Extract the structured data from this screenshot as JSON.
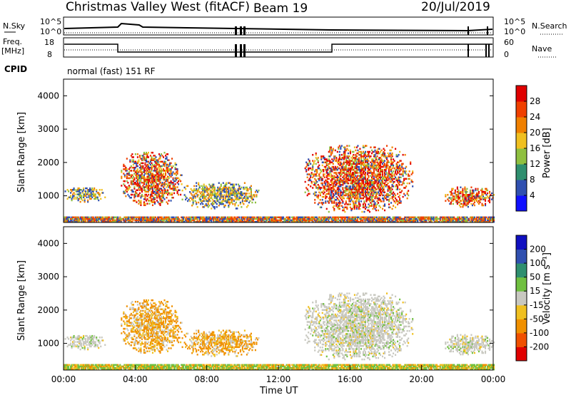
{
  "header": {
    "title": "Christmas Valley West (fitACF)",
    "beam": "Beam 19",
    "date": "20/Jul/2019"
  },
  "panels": {
    "nsky": {
      "label": "N.Sky",
      "ticks": [
        "10^5",
        "10^0"
      ],
      "right_label": "N.Search",
      "right_ticks": [
        "10^5",
        "10^0"
      ]
    },
    "freq": {
      "label_lines": [
        "Freq.",
        "[MHz]"
      ],
      "ticks": [
        "18",
        "8"
      ],
      "right_label": "Nave",
      "right_ticks": [
        "60",
        "0"
      ]
    },
    "cpid": {
      "label": "CPID",
      "text": "normal (fast) 151 RF"
    }
  },
  "chart_data": [
    {
      "type": "heatmap",
      "name": "power",
      "ylabel": "Slant Range [km]",
      "yticks": [
        1000,
        2000,
        3000,
        4000
      ],
      "ylim": [
        200,
        4500
      ],
      "xlim": [
        0,
        24
      ],
      "colorbar": {
        "label": "Power [dB]",
        "ticks": [
          "4",
          "8",
          "12",
          "16",
          "20",
          "24",
          "28"
        ],
        "colors": [
          "#1010ff",
          "#3050b0",
          "#2f8f6f",
          "#8fc040",
          "#f0c020",
          "#f08000",
          "#f04000",
          "#e00000"
        ]
      },
      "echo_regions": [
        {
          "t_start": 0.0,
          "t_end": 2.3,
          "range_min": 800,
          "range_max": 1250,
          "level": "moderate"
        },
        {
          "t_start": 3.2,
          "t_end": 6.6,
          "range_min": 700,
          "range_max": 2300,
          "level": "strong"
        },
        {
          "t_start": 6.6,
          "t_end": 10.9,
          "range_min": 600,
          "range_max": 1400,
          "level": "moderate"
        },
        {
          "t_start": 13.4,
          "t_end": 19.5,
          "range_min": 500,
          "range_max": 2500,
          "level": "strong"
        },
        {
          "t_start": 21.3,
          "t_end": 24.0,
          "range_min": 650,
          "range_max": 1250,
          "level": "strong"
        },
        {
          "t_start": 0.0,
          "t_end": 24.0,
          "range_min": 200,
          "range_max": 350,
          "level": "ground"
        }
      ]
    },
    {
      "type": "heatmap",
      "name": "velocity",
      "ylabel": "Slant Range [km]",
      "yticks": [
        1000,
        2000,
        3000,
        4000
      ],
      "ylim": [
        200,
        4500
      ],
      "xlim": [
        0,
        24
      ],
      "xlabel": "Time UT",
      "xticks": [
        "00:00",
        "04:00",
        "08:00",
        "12:00",
        "16:00",
        "20:00",
        "00:00"
      ],
      "colorbar": {
        "label": "Velocity [m s⁻¹]",
        "ticks": [
          "-200",
          "-100",
          "-50",
          "-15",
          "15",
          "50",
          "100",
          "200"
        ],
        "colors": [
          "#e00000",
          "#f05000",
          "#f09000",
          "#f0c020",
          "#c8c8c0",
          "#70c040",
          "#2f8f6f",
          "#3050b0",
          "#1010c0"
        ]
      }
    }
  ]
}
